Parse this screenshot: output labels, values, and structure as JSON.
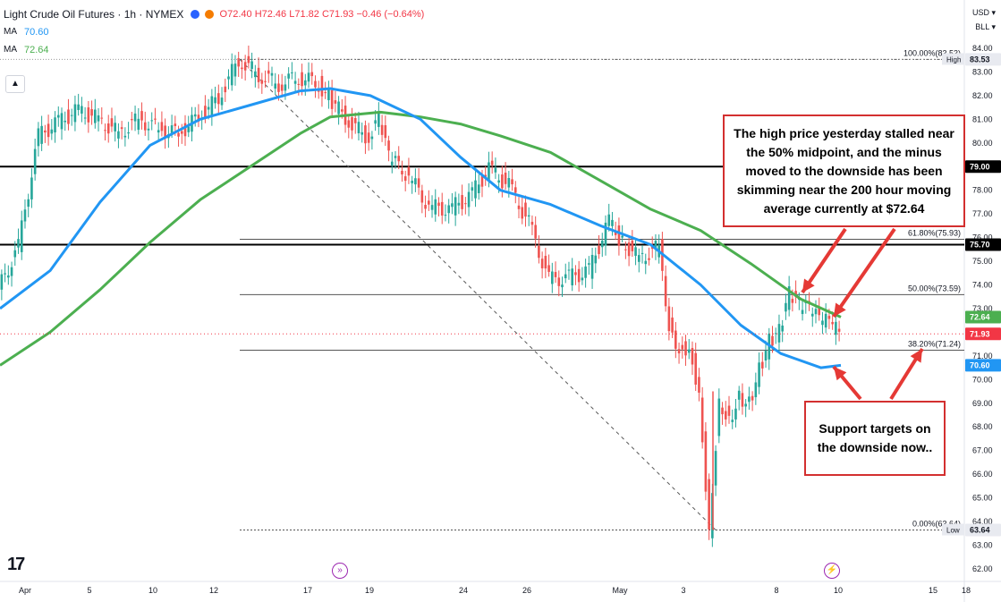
{
  "legend": {
    "title": "Light Crude Oil Futures · 1h · NYMEX",
    "open": "O72.40",
    "high": "H72.46",
    "low": "L71.82",
    "close": "C71.93",
    "change": "−0.46 (−0.64%)",
    "ma1_label": "MA",
    "ma1_value": "70.60",
    "ma2_label": "MA",
    "ma2_value": "72.64",
    "collapse_icon": "chevron-up-icon"
  },
  "currency": "USD",
  "unit": "BLL",
  "annotations": {
    "top_note": "The high price yesterday stalled near the 50% midpoint, and the minus moved to the downside has been skimming near the 200 hour moving average currently at $72.64",
    "bottom_note": "Support targets on the downside now.."
  },
  "colors": {
    "ma100": "#2196f3",
    "ma200": "#4caf50",
    "up": "#26a69a",
    "down": "#ef5350",
    "annotation": "#e53935",
    "price_tag": "#f23645",
    "axis_text": "#131722"
  },
  "chart_data": {
    "type": "candlestick",
    "title": "Light Crude Oil Futures · 1h · NYMEX",
    "ylim": [
      61.5,
      84.5
    ],
    "y_ticks": [
      62,
      63,
      64,
      65,
      66,
      67,
      68,
      69,
      70,
      71,
      72,
      73,
      74,
      75,
      76,
      77,
      78,
      79,
      80,
      81,
      82,
      83,
      84
    ],
    "x_ticks": [
      "Apr",
      "5",
      "10",
      "12",
      "17",
      "19",
      "24",
      "26",
      "May",
      "3",
      "8",
      "10",
      "15",
      "18"
    ],
    "fib_levels": [
      {
        "label": "100.00%(83.53)",
        "value": 83.53
      },
      {
        "label": "61.80%(75.93)",
        "value": 75.93
      },
      {
        "label": "50.00%(73.59)",
        "value": 73.59
      },
      {
        "label": "38.20%(71.24)",
        "value": 71.24
      },
      {
        "label": "0.00%(63.64)",
        "value": 63.64
      }
    ],
    "horizontal_levels": [
      {
        "value": 79.0,
        "label": "79.00"
      },
      {
        "value": 75.7,
        "label": "75.70"
      }
    ],
    "price_tags": [
      {
        "label": "High",
        "value": "83.53"
      },
      {
        "label": "79.00",
        "value": "79.00"
      },
      {
        "label": "75.70",
        "value": "75.70"
      },
      {
        "label": "MA200",
        "value": "72.64"
      },
      {
        "label": "Last",
        "value": "71.93"
      },
      {
        "label": "MA100",
        "value": "70.60"
      },
      {
        "label": "Low",
        "value": "63.64"
      }
    ],
    "ma_200": [
      [
        0,
        70.6
      ],
      [
        0.05,
        72.0
      ],
      [
        0.1,
        73.8
      ],
      [
        0.15,
        75.8
      ],
      [
        0.2,
        77.6
      ],
      [
        0.25,
        79.0
      ],
      [
        0.3,
        80.4
      ],
      [
        0.33,
        81.1
      ],
      [
        0.38,
        81.3
      ],
      [
        0.42,
        81.1
      ],
      [
        0.46,
        80.8
      ],
      [
        0.5,
        80.3
      ],
      [
        0.55,
        79.6
      ],
      [
        0.6,
        78.4
      ],
      [
        0.65,
        77.2
      ],
      [
        0.7,
        76.3
      ],
      [
        0.75,
        74.9
      ],
      [
        0.8,
        73.4
      ],
      [
        0.84,
        72.64
      ]
    ],
    "ma_100": [
      [
        0,
        73.0
      ],
      [
        0.05,
        74.6
      ],
      [
        0.1,
        77.5
      ],
      [
        0.15,
        79.9
      ],
      [
        0.2,
        81.0
      ],
      [
        0.25,
        81.6
      ],
      [
        0.3,
        82.2
      ],
      [
        0.33,
        82.3
      ],
      [
        0.37,
        82.0
      ],
      [
        0.42,
        81.0
      ],
      [
        0.46,
        79.4
      ],
      [
        0.5,
        78.0
      ],
      [
        0.55,
        77.4
      ],
      [
        0.6,
        76.5
      ],
      [
        0.65,
        75.7
      ],
      [
        0.7,
        74.0
      ],
      [
        0.74,
        72.3
      ],
      [
        0.78,
        71.1
      ],
      [
        0.82,
        70.5
      ],
      [
        0.84,
        70.6
      ]
    ],
    "price_path": [
      [
        0,
        73.8
      ],
      [
        0.02,
        75.6
      ],
      [
        0.04,
        80.3
      ],
      [
        0.06,
        80.9
      ],
      [
        0.08,
        81.4
      ],
      [
        0.1,
        81.0
      ],
      [
        0.12,
        80.4
      ],
      [
        0.14,
        81.0
      ],
      [
        0.16,
        80.6
      ],
      [
        0.18,
        80.4
      ],
      [
        0.2,
        81.1
      ],
      [
        0.22,
        81.9
      ],
      [
        0.24,
        83.53
      ],
      [
        0.26,
        82.9
      ],
      [
        0.28,
        82.5
      ],
      [
        0.3,
        82.8
      ],
      [
        0.32,
        82.5
      ],
      [
        0.33,
        81.9
      ],
      [
        0.35,
        80.9
      ],
      [
        0.37,
        80.2
      ],
      [
        0.38,
        81.0
      ],
      [
        0.39,
        79.4
      ],
      [
        0.41,
        78.6
      ],
      [
        0.43,
        77.3
      ],
      [
        0.45,
        77.2
      ],
      [
        0.47,
        77.7
      ],
      [
        0.49,
        78.9
      ],
      [
        0.51,
        78.2
      ],
      [
        0.53,
        76.6
      ],
      [
        0.55,
        74.2
      ],
      [
        0.57,
        74.3
      ],
      [
        0.59,
        74.6
      ],
      [
        0.61,
        76.7
      ],
      [
        0.62,
        76.0
      ],
      [
        0.64,
        75.1
      ],
      [
        0.66,
        75.6
      ],
      [
        0.67,
        72.3
      ],
      [
        0.68,
        71.3
      ],
      [
        0.69,
        71.4
      ],
      [
        0.7,
        69.5
      ],
      [
        0.71,
        63.64
      ],
      [
        0.72,
        69.1
      ],
      [
        0.73,
        68.3
      ],
      [
        0.74,
        69.3
      ],
      [
        0.75,
        69.0
      ],
      [
        0.76,
        70.4
      ],
      [
        0.77,
        71.6
      ],
      [
        0.78,
        72.0
      ],
      [
        0.79,
        73.6
      ],
      [
        0.8,
        73.1
      ],
      [
        0.81,
        73.0
      ],
      [
        0.82,
        72.5
      ],
      [
        0.83,
        72.4
      ],
      [
        0.84,
        71.93
      ]
    ]
  }
}
